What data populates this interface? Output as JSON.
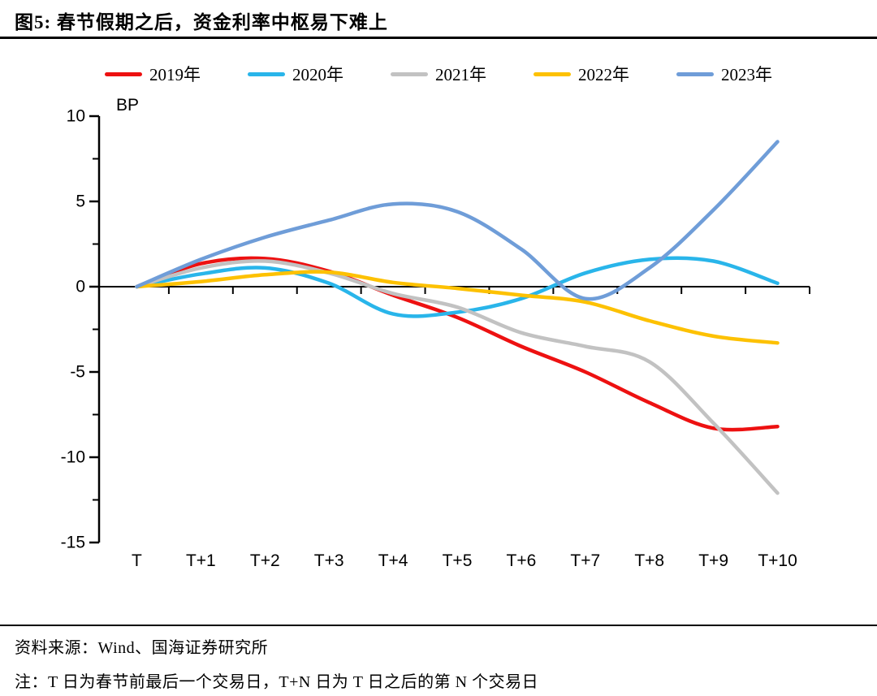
{
  "title": "图5:  春节假期之后，资金利率中枢易下难上",
  "chart_data": {
    "type": "line",
    "title": "春节假期之后，资金利率中枢易下难上",
    "ylabel": "BP",
    "xlabel": "",
    "ylim": [
      -15,
      10
    ],
    "yticks": [
      10,
      5,
      0,
      -5,
      -10,
      -15
    ],
    "minor_ytick_step": 2.5,
    "grid": false,
    "smooth": true,
    "legend_position": "top",
    "axis_color": "#000000",
    "background": "#ffffff",
    "categories": [
      "T",
      "T+1",
      "T+2",
      "T+3",
      "T+4",
      "T+5",
      "T+6",
      "T+7",
      "T+8",
      "T+9",
      "T+10"
    ],
    "series": [
      {
        "name": "2019年",
        "color": "#ed1111",
        "values": [
          0,
          1.35,
          1.65,
          0.9,
          -0.5,
          -1.8,
          -3.5,
          -5.0,
          -6.8,
          -8.3,
          -8.2
        ]
      },
      {
        "name": "2020年",
        "color": "#29b5ea",
        "values": [
          0,
          0.75,
          1.1,
          0.2,
          -1.6,
          -1.5,
          -0.7,
          0.8,
          1.6,
          1.5,
          0.2
        ]
      },
      {
        "name": "2021年",
        "color": "#c2c2c2",
        "values": [
          0,
          1.1,
          1.5,
          0.8,
          -0.4,
          -1.2,
          -2.7,
          -3.5,
          -4.4,
          -8.0,
          -12.1
        ]
      },
      {
        "name": "2022年",
        "color": "#fdc101",
        "values": [
          0,
          0.3,
          0.7,
          0.85,
          0.25,
          -0.1,
          -0.5,
          -0.9,
          -2.0,
          -2.9,
          -3.3
        ]
      },
      {
        "name": "2023年",
        "color": "#6f9dd8",
        "values": [
          0,
          1.6,
          2.9,
          3.9,
          4.85,
          4.4,
          2.2,
          -0.7,
          1.1,
          4.5,
          8.5
        ]
      }
    ]
  },
  "footer": {
    "source": "资料来源：Wind、国海证券研究所",
    "note": "注：T 日为春节前最后一个交易日，T+N 日为 T 日之后的第 N 个交易日"
  }
}
